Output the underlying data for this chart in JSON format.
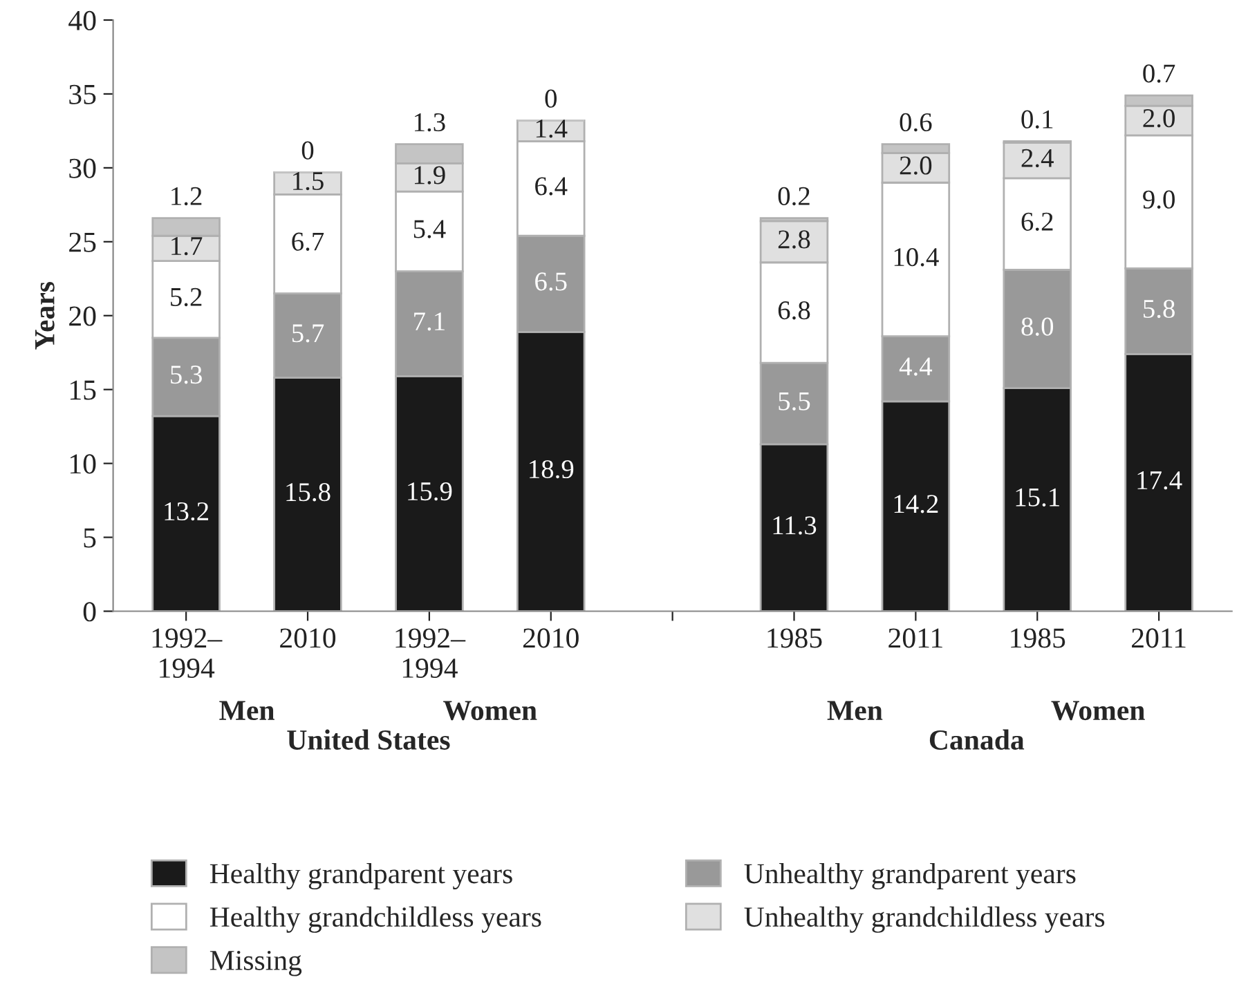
{
  "chart_data": {
    "type": "bar",
    "stacked": true,
    "ylabel": "Years",
    "ylim": [
      0,
      40
    ],
    "yticks": [
      0,
      5,
      10,
      15,
      20,
      25,
      30,
      35,
      40
    ],
    "grid": false,
    "legend": "bottom",
    "categories": [
      "1992–\n1994",
      "2010",
      "1992–\n1994",
      "2010",
      null,
      "1985",
      "2011",
      "1985",
      "2011"
    ],
    "annotations": [
      "Men",
      "Women",
      "Men",
      "Women",
      "United States",
      "Canada"
    ],
    "series": [
      {
        "name": "Healthy grandparent years",
        "color": "#1a1a1a",
        "values": [
          13.2,
          15.8,
          15.9,
          18.9,
          null,
          11.3,
          14.2,
          15.1,
          17.4
        ],
        "value_labels": [
          "13.2",
          "15.8",
          "15.9",
          "18.9",
          null,
          "11.3",
          "14.2",
          "15.1",
          "17.4"
        ]
      },
      {
        "name": "Unhealthy grandparent years",
        "color": "#999999",
        "values": [
          5.3,
          5.7,
          7.1,
          6.5,
          null,
          5.5,
          4.4,
          8.0,
          5.8
        ],
        "value_labels": [
          "5.3",
          "5.7",
          "7.1",
          "6.5",
          null,
          "5.5",
          "4.4",
          "8.0",
          "5.8"
        ]
      },
      {
        "name": "Healthy grandchildless years",
        "color": "#ffffff",
        "values": [
          5.2,
          6.7,
          5.4,
          6.4,
          null,
          6.8,
          10.4,
          6.2,
          9.0
        ],
        "value_labels": [
          "5.2",
          "6.7",
          "5.4",
          "6.4",
          null,
          "6.8",
          "10.4",
          "6.2",
          "9.0"
        ]
      },
      {
        "name": "Unhealthy grandchildless years",
        "color": "#e0e0e0",
        "values": [
          1.7,
          1.5,
          1.9,
          1.4,
          null,
          2.8,
          2.0,
          2.4,
          2.0
        ],
        "value_labels": [
          "1.7",
          "1.5",
          "1.9",
          "1.4",
          null,
          "2.8",
          "2.0",
          "2.4",
          "2.0"
        ]
      },
      {
        "name": "Missing",
        "color": "#c4c4c4",
        "values": [
          1.2,
          0,
          1.3,
          0,
          null,
          0.2,
          0.6,
          0.1,
          0.7
        ],
        "value_labels": [
          "1.2",
          "0",
          "1.3",
          "0",
          null,
          "0.2",
          "0.6",
          "0.1",
          "0.7"
        ]
      }
    ]
  }
}
